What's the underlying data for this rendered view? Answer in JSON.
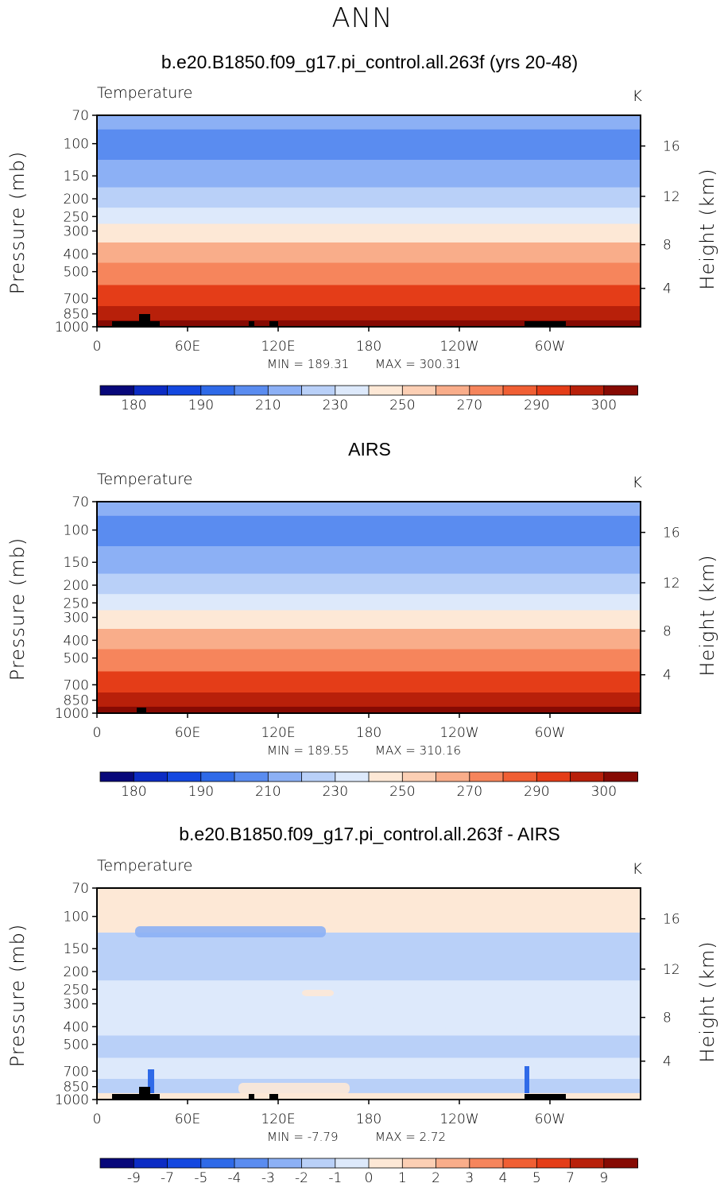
{
  "figure_title": "ANN",
  "chart_data": [
    {
      "type": "heatmap",
      "title": "b.e20.B1850.f09_g17.pi_control.all.263f (yrs 20-48)",
      "variable": "Temperature",
      "units": "K",
      "ylabel": "Pressure (mb)",
      "ylabel_right": "Height (km)",
      "x_ticks": [
        "0",
        "60E",
        "120E",
        "180",
        "120W",
        "60W"
      ],
      "y_ticks": [
        "70",
        "100",
        "150",
        "200",
        "250",
        "300",
        "400",
        "500",
        "700",
        "850",
        "1000"
      ],
      "y_ticks_right": [
        "16",
        "12",
        "8",
        "4"
      ],
      "min_label": "MIN  =  189.31",
      "max_label": "MAX  =  300.31",
      "min": 189.31,
      "max": 300.31,
      "colorbar_labels": [
        "180",
        "190",
        "210",
        "230",
        "250",
        "270",
        "290",
        "300"
      ],
      "levels": [
        {
          "p": 70,
          "v": 200
        },
        {
          "p": 100,
          "v": 199
        },
        {
          "p": 150,
          "v": 207
        },
        {
          "p": 200,
          "v": 215
        },
        {
          "p": 250,
          "v": 225
        },
        {
          "p": 300,
          "v": 235
        },
        {
          "p": 400,
          "v": 252
        },
        {
          "p": 500,
          "v": 264
        },
        {
          "p": 700,
          "v": 280
        },
        {
          "p": 850,
          "v": 290
        },
        {
          "p": 1000,
          "v": 297
        }
      ]
    },
    {
      "type": "heatmap",
      "title": "AIRS",
      "variable": "Temperature",
      "units": "K",
      "ylabel": "Pressure (mb)",
      "ylabel_right": "Height (km)",
      "x_ticks": [
        "0",
        "60E",
        "120E",
        "180",
        "120W",
        "60W"
      ],
      "y_ticks": [
        "70",
        "100",
        "150",
        "200",
        "250",
        "300",
        "400",
        "500",
        "700",
        "850",
        "1000"
      ],
      "y_ticks_right": [
        "16",
        "12",
        "8",
        "4"
      ],
      "min_label": "MIN  =  189.55",
      "max_label": "MAX  =  310.16",
      "min": 189.55,
      "max": 310.16,
      "colorbar_labels": [
        "180",
        "190",
        "210",
        "230",
        "250",
        "270",
        "290",
        "300"
      ],
      "levels": [
        {
          "p": 70,
          "v": 200
        },
        {
          "p": 100,
          "v": 199
        },
        {
          "p": 150,
          "v": 207
        },
        {
          "p": 200,
          "v": 215
        },
        {
          "p": 250,
          "v": 225
        },
        {
          "p": 300,
          "v": 236
        },
        {
          "p": 400,
          "v": 253
        },
        {
          "p": 500,
          "v": 265
        },
        {
          "p": 700,
          "v": 281
        },
        {
          "p": 850,
          "v": 292
        },
        {
          "p": 1000,
          "v": 300
        }
      ]
    },
    {
      "type": "heatmap",
      "title": "b.e20.B1850.f09_g17.pi_control.all.263f - AIRS",
      "variable": "Temperature",
      "units": "K",
      "ylabel": "Pressure (mb)",
      "ylabel_right": "Height (km)",
      "x_ticks": [
        "0",
        "60E",
        "120E",
        "180",
        "120W",
        "60W"
      ],
      "y_ticks": [
        "70",
        "100",
        "150",
        "200",
        "250",
        "300",
        "400",
        "500",
        "700",
        "850",
        "1000"
      ],
      "y_ticks_right": [
        "16",
        "12",
        "8",
        "4"
      ],
      "min_label": "MIN  =    -7.79",
      "max_label": "MAX  =      2.72",
      "min": -7.79,
      "max": 2.72,
      "colorbar_labels": [
        "-9",
        "-7",
        "-5",
        "-4",
        "-3",
        "-2",
        "-1",
        "0",
        "1",
        "2",
        "3",
        "4",
        "5",
        "7",
        "9"
      ],
      "levels": [
        {
          "p": 70,
          "v": 0.4
        },
        {
          "p": 100,
          "v": 0.2
        },
        {
          "p": 150,
          "v": -1.3
        },
        {
          "p": 200,
          "v": -1.1
        },
        {
          "p": 250,
          "v": -0.6
        },
        {
          "p": 300,
          "v": -0.7
        },
        {
          "p": 400,
          "v": -0.5
        },
        {
          "p": 500,
          "v": -1.1
        },
        {
          "p": 700,
          "v": -0.6
        },
        {
          "p": 850,
          "v": -1.2
        },
        {
          "p": 1000,
          "v": 0.5
        }
      ]
    }
  ],
  "palettes": {
    "temperature": [
      "#08087a",
      "#0c2cc4",
      "#1448e0",
      "#2f6ae8",
      "#5a8cf0",
      "#8cb0f5",
      "#b9d0f8",
      "#dde9fb",
      "#fde8d6",
      "#fccfb4",
      "#f9ad8a",
      "#f6855c",
      "#f05f34",
      "#e43d18",
      "#b8200a",
      "#860a03"
    ],
    "difference": [
      "#08087a",
      "#0c2cc4",
      "#1448e0",
      "#2f6ae8",
      "#5a8cf0",
      "#8cb0f5",
      "#b9d0f8",
      "#dde9fb",
      "#fde8d6",
      "#fccfb4",
      "#f9ad8a",
      "#f6855c",
      "#f05f34",
      "#e43d18",
      "#b8200a",
      "#860a03"
    ]
  }
}
